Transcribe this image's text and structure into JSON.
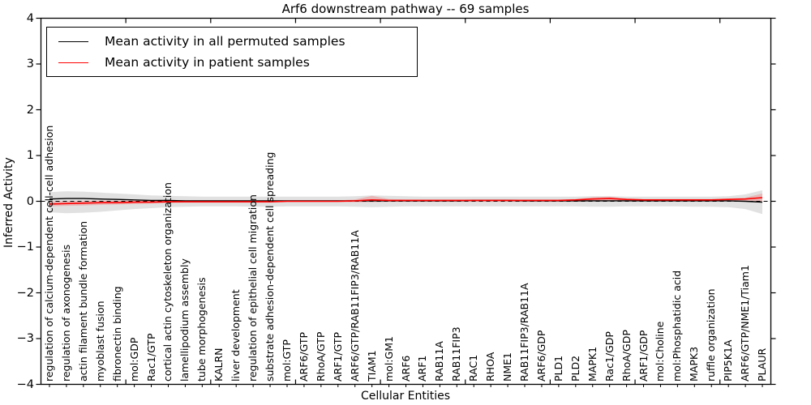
{
  "colors": {
    "permuted_line": "#000000",
    "patient_line": "#ff0000",
    "permuted_band": "#b0b0b0",
    "patient_band": "#ff0000",
    "axis": "#000000",
    "background": "#ffffff"
  },
  "chart_data": {
    "type": "line",
    "title": "Arf6 downstream pathway -- 69 samples",
    "xlabel": "Cellular Entities",
    "ylabel": "Inferred Activity",
    "ylim": [
      -4,
      4
    ],
    "yticks": [
      4,
      3,
      2,
      1,
      0,
      -1,
      -2,
      -3,
      -4
    ],
    "x_major_tick_every": 5,
    "grid": false,
    "legend_position": "upper left",
    "zero_line": {
      "y": 0,
      "style": "dashed",
      "color": "#000000"
    },
    "categories": [
      "regulation of calcium-dependent cell-cell adhesion",
      "regulation of axonogenesis",
      "actin filament bundle formation",
      "myoblast fusion",
      "fibronectin binding",
      "mol:GDP",
      "Rac1/GTP",
      "cortical actin cytoskeleton organization",
      "lamellipodium assembly",
      "tube morphogenesis",
      "KALRN",
      "liver development",
      "regulation of epithelial cell migration",
      "substrate adhesion-dependent cell spreading",
      "mol:GTP",
      "ARF6/GTP",
      "RhoA/GTP",
      "ARF1/GTP",
      "ARF6/GTP/RAB11FIP3/RAB11A",
      "TIAM1",
      "mol:GM1",
      "ARF6",
      "ARF1",
      "RAB11A",
      "RAB11FIP3",
      "RAC1",
      "RHOA",
      "NME1",
      "RAB11FIP3/RAB11A",
      "ARF6/GDP",
      "PLD1",
      "PLD2",
      "MAPK1",
      "Rac1/GDP",
      "RhoA/GDP",
      "ARF1/GDP",
      "mol:Choline",
      "mol:Phosphatidic acid",
      "MAPK3",
      "ruffle organization",
      "PIP5K1A",
      "ARF6/GTP/NME1/Tiam1",
      "PLAUR"
    ],
    "series": [
      {
        "name": "Mean activity in all permuted samples",
        "color": "#000000",
        "style": "solid",
        "values": [
          0.05,
          0.06,
          0.06,
          0.05,
          0.04,
          0.03,
          0.02,
          0.02,
          0.01,
          0.01,
          0.01,
          0.01,
          0.01,
          0.01,
          0.01,
          0.01,
          0.01,
          0.01,
          0.01,
          0.01,
          0.01,
          0.01,
          0.01,
          0.01,
          0.01,
          0.02,
          0.02,
          0.02,
          0.01,
          0.01,
          0.01,
          0.01,
          0.01,
          0.01,
          0.01,
          0.01,
          0.01,
          0.01,
          0.01,
          0.01,
          0.01,
          0.0,
          -0.02
        ]
      },
      {
        "name": "Mean activity in patient samples",
        "color": "#ff0000",
        "style": "solid",
        "values": [
          -0.06,
          -0.05,
          -0.04,
          -0.03,
          -0.03,
          -0.02,
          -0.02,
          -0.01,
          -0.01,
          -0.01,
          -0.01,
          -0.01,
          -0.01,
          -0.01,
          0.0,
          0.0,
          0.0,
          0.0,
          0.01,
          0.03,
          0.02,
          0.02,
          0.02,
          0.02,
          0.02,
          0.02,
          0.02,
          0.02,
          0.02,
          0.02,
          0.02,
          0.03,
          0.05,
          0.06,
          0.04,
          0.03,
          0.03,
          0.03,
          0.03,
          0.03,
          0.04,
          0.05,
          0.08
        ]
      }
    ],
    "bands": [
      {
        "name": "permuted-range",
        "color": "#b0b0b0",
        "opacity": 0.38,
        "upper": [
          0.2,
          0.22,
          0.21,
          0.19,
          0.17,
          0.15,
          0.13,
          0.12,
          0.11,
          0.1,
          0.1,
          0.1,
          0.1,
          0.1,
          0.1,
          0.1,
          0.1,
          0.1,
          0.11,
          0.13,
          0.12,
          0.11,
          0.1,
          0.1,
          0.1,
          0.1,
          0.1,
          0.1,
          0.1,
          0.1,
          0.1,
          0.1,
          0.11,
          0.11,
          0.1,
          0.1,
          0.1,
          0.1,
          0.1,
          0.1,
          0.11,
          0.15,
          0.24
        ],
        "lower": [
          -0.24,
          -0.26,
          -0.25,
          -0.23,
          -0.2,
          -0.17,
          -0.15,
          -0.13,
          -0.12,
          -0.11,
          -0.11,
          -0.11,
          -0.12,
          -0.12,
          -0.11,
          -0.11,
          -0.11,
          -0.11,
          -0.12,
          -0.13,
          -0.12,
          -0.11,
          -0.11,
          -0.11,
          -0.11,
          -0.11,
          -0.11,
          -0.11,
          -0.11,
          -0.11,
          -0.11,
          -0.11,
          -0.12,
          -0.12,
          -0.11,
          -0.11,
          -0.11,
          -0.11,
          -0.12,
          -0.12,
          -0.13,
          -0.17,
          -0.28
        ]
      },
      {
        "name": "patient-range",
        "color": "#ff0000",
        "opacity": 0.18,
        "upper": [
          0.0,
          0.0,
          0.01,
          0.01,
          0.01,
          0.01,
          0.01,
          0.01,
          0.01,
          0.01,
          0.01,
          0.01,
          0.01,
          0.01,
          0.02,
          0.02,
          0.02,
          0.02,
          0.04,
          0.12,
          0.05,
          0.04,
          0.04,
          0.04,
          0.04,
          0.04,
          0.04,
          0.04,
          0.04,
          0.04,
          0.04,
          0.05,
          0.09,
          0.1,
          0.06,
          0.05,
          0.05,
          0.05,
          0.05,
          0.05,
          0.06,
          0.08,
          0.17
        ],
        "lower": [
          -0.11,
          -0.1,
          -0.09,
          -0.08,
          -0.07,
          -0.06,
          -0.05,
          -0.04,
          -0.03,
          -0.03,
          -0.03,
          -0.03,
          -0.03,
          -0.03,
          -0.02,
          -0.02,
          -0.02,
          -0.02,
          -0.02,
          -0.02,
          -0.01,
          -0.01,
          -0.01,
          -0.01,
          -0.01,
          -0.01,
          -0.01,
          -0.01,
          -0.01,
          -0.01,
          -0.01,
          -0.01,
          0.0,
          0.0,
          0.0,
          0.0,
          0.0,
          0.0,
          0.0,
          0.0,
          0.0,
          0.01,
          -0.02
        ]
      }
    ]
  }
}
